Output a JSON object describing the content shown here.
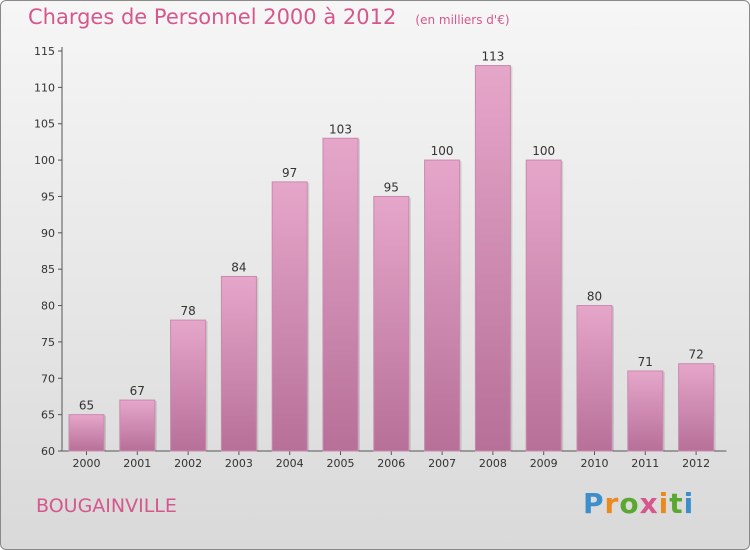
{
  "title": "Charges de Personnel 2000 à 2012",
  "subtitle": "(en milliers d'€)",
  "commune": "BOUGAINVILLE",
  "logo": {
    "p1": "P",
    "p2": "r",
    "p3": "o",
    "p4": "x",
    "p5": "i",
    "p6": "t",
    "p7": "i"
  },
  "colors": {
    "accent": "#d6578c",
    "bar_top": "#e6a6ca",
    "bar_bottom": "#b77098"
  },
  "chart_data": {
    "type": "bar",
    "categories": [
      "2000",
      "2001",
      "2002",
      "2003",
      "2004",
      "2005",
      "2006",
      "2007",
      "2008",
      "2009",
      "2010",
      "2011",
      "2012"
    ],
    "values": [
      65,
      67,
      78,
      84,
      97,
      103,
      95,
      100,
      113,
      100,
      80,
      71,
      72
    ],
    "ylim": [
      60,
      115
    ],
    "yticks": [
      60,
      65,
      70,
      75,
      80,
      85,
      90,
      95,
      100,
      105,
      110,
      115
    ],
    "data_labels": true,
    "grid": false
  }
}
